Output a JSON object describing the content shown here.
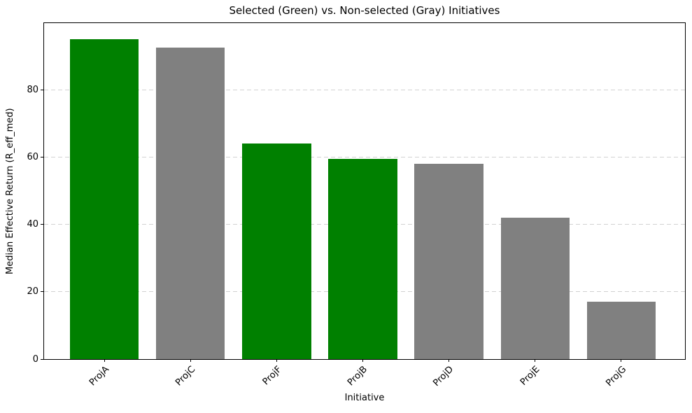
{
  "chart_data": {
    "type": "bar",
    "title": "Selected (Green) vs. Non-selected (Gray) Initiatives",
    "xlabel": "Initiative",
    "ylabel": "Median Effective Return (R_eff_med)",
    "categories": [
      "ProjA",
      "ProjC",
      "ProjF",
      "ProjB",
      "ProjD",
      "ProjE",
      "ProjG"
    ],
    "values": [
      95,
      92.5,
      64,
      59.5,
      58,
      42,
      17
    ],
    "selected": [
      true,
      false,
      true,
      true,
      false,
      false,
      false
    ],
    "series": [
      {
        "name": "Selected",
        "color": "#008000",
        "members": [
          "ProjA",
          "ProjF",
          "ProjB"
        ]
      },
      {
        "name": "Non-selected",
        "color": "#808080",
        "members": [
          "ProjC",
          "ProjD",
          "ProjE",
          "ProjG"
        ]
      }
    ],
    "colors": {
      "selected": "#008000",
      "non_selected": "#808080",
      "grid": "#d2d2d2",
      "text": "#000000"
    },
    "yticks": [
      0,
      20,
      40,
      60,
      80
    ],
    "ylim": [
      0,
      99.8
    ],
    "grid": "horizontal dashed",
    "legend": "none",
    "tick_label_rotation": 45
  }
}
